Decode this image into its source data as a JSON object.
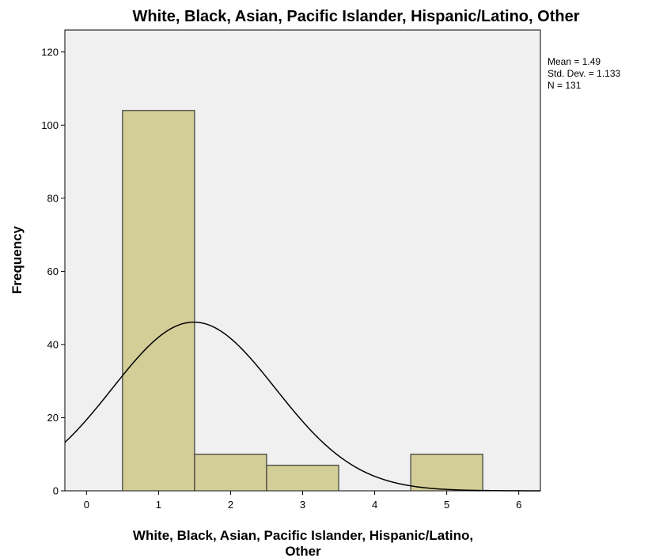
{
  "chart_data": {
    "type": "bar",
    "subtype": "histogram",
    "title": "White, Black, Asian, Pacific Islander, Hispanic/Latino, Other",
    "xlabel_lines": [
      "White, Black, Asian, Pacific Islander, Hispanic/Latino,",
      "Other"
    ],
    "ylabel": "Frequency",
    "xlim": [
      -0.3,
      6.3
    ],
    "ylim": [
      0,
      126
    ],
    "x_ticks": [
      0,
      1,
      2,
      3,
      4,
      5,
      6
    ],
    "y_ticks": [
      0,
      20,
      40,
      60,
      80,
      100,
      120
    ],
    "bin_width": 1,
    "bins": [
      {
        "x": 1,
        "count": 104
      },
      {
        "x": 2,
        "count": 10
      },
      {
        "x": 3,
        "count": 7
      },
      {
        "x": 5,
        "count": 10
      }
    ],
    "normal_curve": {
      "mean": 1.49,
      "std_dev": 1.133,
      "n": 131
    },
    "stats_text": [
      "Mean = 1.49",
      "Std. Dev. = 1.133",
      "N = 131"
    ],
    "legend_position": "top-right",
    "grid": false,
    "colors": {
      "plot_background": "#f0f0f0",
      "bar_fill": "#d3ce97",
      "bar_stroke": "#3a3a3a",
      "curve": "#000000"
    }
  }
}
